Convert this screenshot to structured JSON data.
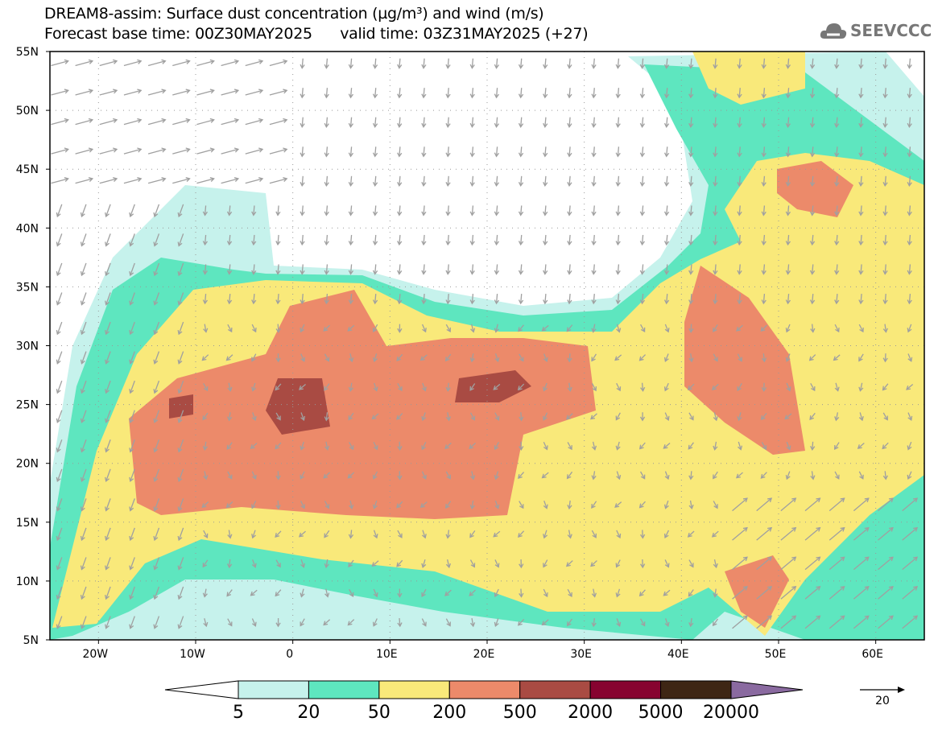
{
  "header": {
    "title": "DREAM8-assim: Surface dust concentration (µg/m³) and wind (m/s)",
    "subtitle": "Forecast base time: 00Z30MAY2025      valid time: 03Z31MAY2025 (+27)"
  },
  "logo": {
    "text": "SEEVCCC",
    "icon": "cloud-icon"
  },
  "axes": {
    "lat_labels": [
      "55N",
      "50N",
      "45N",
      "40N",
      "35N",
      "30N",
      "25N",
      "20N",
      "15N",
      "10N",
      "5N"
    ],
    "lat_values": [
      55,
      50,
      45,
      40,
      35,
      30,
      25,
      20,
      15,
      10,
      5
    ],
    "lon_labels": [
      "20W",
      "10W",
      "0",
      "10E",
      "20E",
      "30E",
      "40E",
      "50E",
      "60E"
    ],
    "lon_values": [
      -20,
      -10,
      0,
      10,
      20,
      30,
      40,
      50,
      60
    ],
    "lon_range": [
      -25,
      65
    ],
    "lat_range": [
      5,
      55
    ]
  },
  "colorbar": {
    "labels": [
      "5",
      "20",
      "50",
      "200",
      "500",
      "2000",
      "5000",
      "20000"
    ],
    "colors": [
      "#c6f2ec",
      "#5ee6bf",
      "#f9e97a",
      "#ec8a6a",
      "#a94b43",
      "#870330",
      "#3e2614",
      "#8a6aa0"
    ]
  },
  "wind_reference": {
    "label": "20",
    "units": "m/s"
  }
}
